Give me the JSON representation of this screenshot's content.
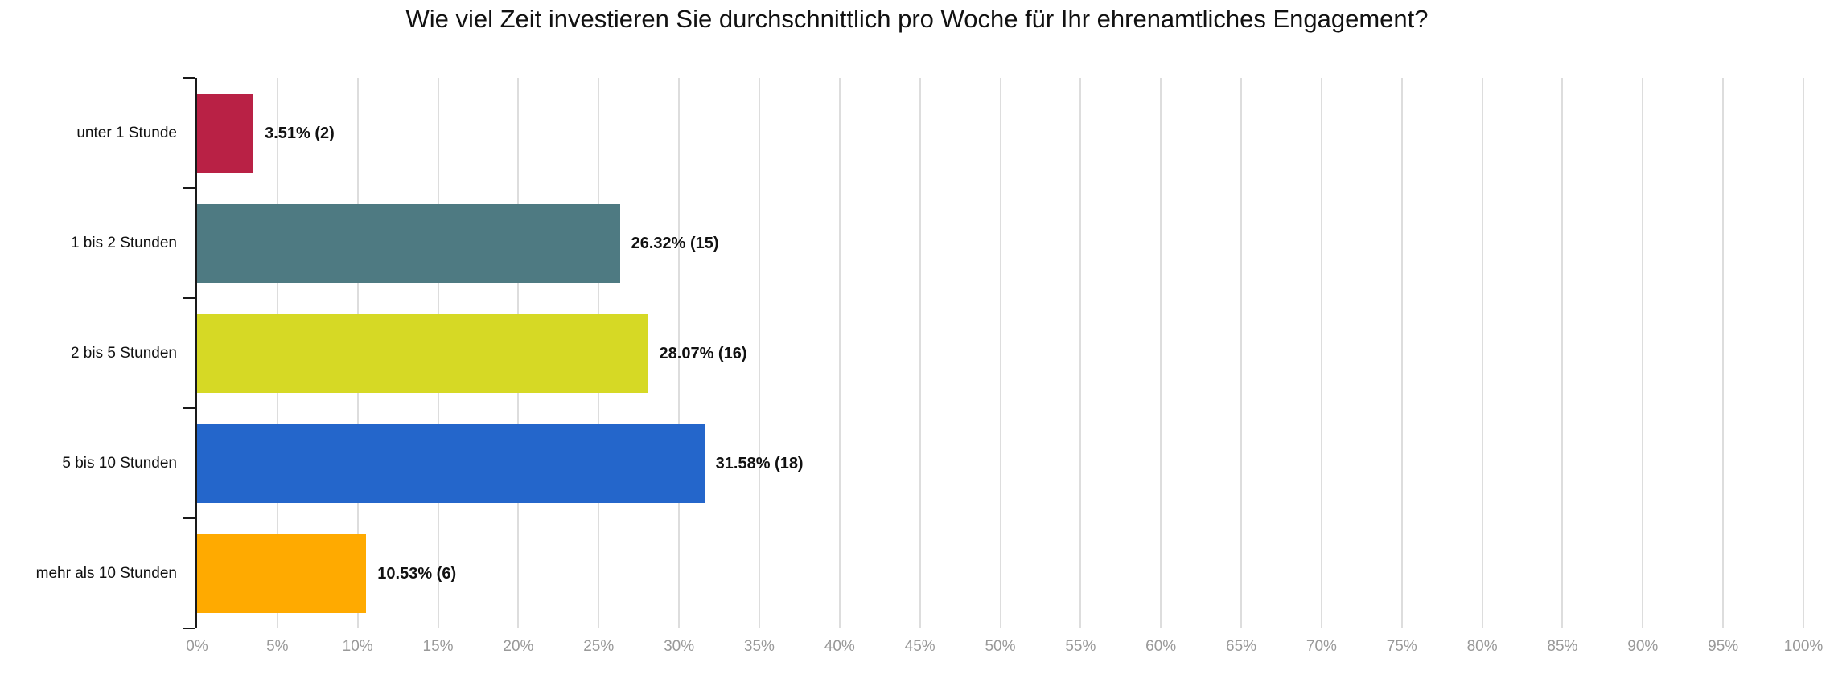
{
  "chart_data": {
    "type": "bar",
    "orientation": "horizontal",
    "title": "Wie viel Zeit investieren Sie durchschnittlich pro Woche für Ihr ehrenamtliches Engagement?",
    "categories": [
      "unter 1 Stunde",
      "1 bis 2 Stunden",
      "2 bis 5 Stunden",
      "5 bis 10 Stunden",
      "mehr als 10 Stunden"
    ],
    "values": [
      3.51,
      26.32,
      28.07,
      31.58,
      10.53
    ],
    "counts": [
      2,
      15,
      16,
      18,
      6
    ],
    "value_labels": [
      "3.51% (2)",
      "26.32% (15)",
      "28.07% (16)",
      "31.58% (18)",
      "10.53% (6)"
    ],
    "bar_colors": [
      "#B92145",
      "#4E7A82",
      "#D6D925",
      "#2466CB",
      "#FFAA00"
    ],
    "xlabel": "",
    "ylabel": "",
    "xlim": [
      0,
      100
    ],
    "x_tick_step": 5,
    "x_tick_labels": [
      "0%",
      "5%",
      "10%",
      "15%",
      "20%",
      "25%",
      "30%",
      "35%",
      "40%",
      "45%",
      "50%",
      "55%",
      "60%",
      "65%",
      "70%",
      "75%",
      "80%",
      "85%",
      "90%",
      "95%",
      "100%"
    ],
    "grid": true,
    "legend": false,
    "colors": {
      "axis": "#1a1a1a",
      "gridline": "#dddddd",
      "tick_label": "#999999",
      "title_text": "#111111",
      "value_label_text": "#111111",
      "category_label_text": "#111111",
      "background": "#ffffff"
    }
  }
}
